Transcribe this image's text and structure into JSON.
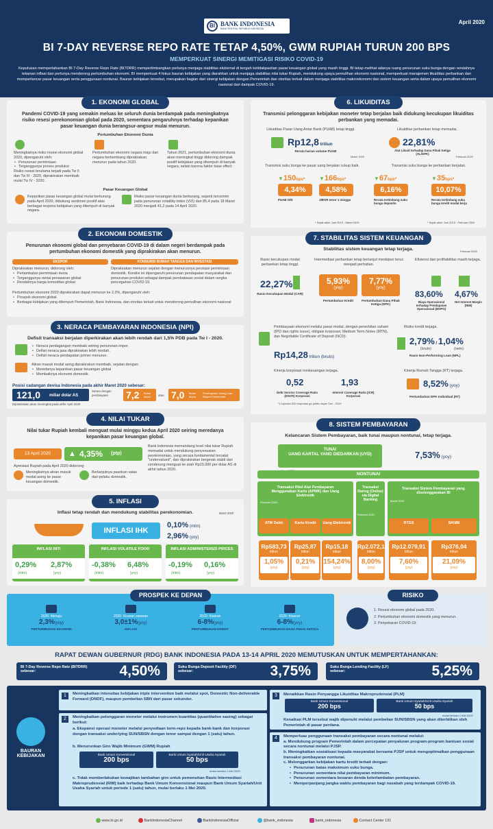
{
  "header": {
    "date": "April 2020",
    "logo": "BANK INDONESIA",
    "logo_sub": "BANK SENTRAL REPUBLIK INDONESIA",
    "title": "BI 7-DAY REVERSE REPO RATE TETAP 4,50%, GWM RUPIAH TURUN 200 BPS",
    "subtitle": "MEMPERKUAT SINERGI MEMITIGASI RISIKO COVID-19",
    "intro": "Keputusan mempertahankan BI 7-Day Reverse Repo Rate (BI7DRR) mempertimbangkan perlunya menjaga stabilitas eksternal di tengah ketidakpastian pasar keuangan global yang masih tinggi. BI tetap melihat adanya ruang penurunan suku bunga dengan rendahnya tekanan inflasi dan perlunya mendorong pertumbuhan ekonomi. BI memperkuat 4 fokus bauran kebijakan yang diarahkan untuk menjaga stabilitas nilai tukar Rupiah, mendukung upaya pemulihan ekonomi nasional, memperkuat manajemen likuiditas perbankan dan memperlancar pasar keuangan serta penggunaan nontunai. Bauran kebijakan tersebut, merupakan bagian dari sinergi kebijakan dengan Pemerintah dan otoritas terkait dalam menjaga stabilitas makroekonomi dan sistem keuangan serta dalam upaya pemulihan ekonomi nasional dari dampak COVID-19."
  },
  "s1": {
    "title": "1. EKONOMI GLOBAL",
    "lead": "Pandemi COVID-19 yang semakin meluas ke seluruh dunia berdampak pada meningkatnya risiko resesi perekonomian global pada 2020, sementara pengaruhnya terhadap kepanikan pasar keuangan dunia berangsur-angsur mulai menurun.",
    "sub1": "Pertumbuhan Ekonomi Dunia",
    "col1": "Meningkatnya risiko resesi ekonomi global 2020, dipengaruhi oleh:",
    "col1_items": [
      "Penurunan permintaan",
      "Terganggunya proses produksi"
    ],
    "col1_tail": "Risiko resesi terutama terjadi pada Tw II dan Tw III - 2020, diprakirakan membaik mulai Tw IV - 2020.",
    "col2": "Pertumbuhan ekonomi negara maju dan negara berkembang diprakirakan menurun pada tahun 2020.",
    "col3": "Tahun 2021, pertumbuhan ekonomi dunia akan meningkat tinggi didorong dampak positif kebijakan yang ditempuh di banyak negara, selain karena faktor base effect.",
    "sub2": "Pasar Keuangan Global",
    "m1": "Kepanikan pasar keuangan global mulai berkurang pada April 2020, didukung sentimen positif atas berbagai respons kebijakan yang ditempuh di banyak negara.",
    "m2": "Risiko pasar keuangan dunia berkurang, seperti tercermin pada penurunan volatility index (VIX) dari 85,4 pada 18 Maret 2020 menjadi 41,2 pada 14 April 2020."
  },
  "s2": {
    "title": "2. EKONOMI DOMESTIK",
    "lead": "Penurunan ekonomi global dan penyebaran COVID-19 di dalam negeri berdampak pada pertumbuhan ekonomi domestik yang diprakirakan akan menurun.",
    "tab1": "EKSPOR",
    "tab2": "KONSUMSI RUMAH TANGGA DAN INVESTASI",
    "l_head": "Diprakirakan menurun, didorong oleh:",
    "l_items": [
      "Perlambatan permintaan dunia",
      "Terganggunya rantai penawaran global",
      "Rendahnya harga komoditas global"
    ],
    "r_text": "Diprakirakan menurun sejalan dengan menurunnya persepsi permintaan domestik. Kondisi ini dipengaruhi penurunan pendapatan masyarakat dan penurunan produksi sebagai dampak pembatasan sosial dalam rangka pencegahan COVID-19.",
    "growth": "Pertumbuhan ekonomi 2020 diprakirakan dapat menurun ke 2,3%, dipengaruhi oleh:",
    "g_items": [
      "Prospek ekonomi global",
      "Berbagai kebijakan yang ditempuh Pemerintah, Bank Indonesia, dan otoritas terkait untuk mendorong pemulihan ekonomi nasional"
    ]
  },
  "s3": {
    "title": "3. NERACA PEMBAYARAN INDONESIA (NPI)",
    "lead": "Defisit transaksi berjalan diperkirakan akan lebih rendah dari 1,5% PDB pada Tw I - 2020.",
    "items": [
      "Neraca perdagangan membaik seiring penurunan impor.",
      "Defisit neraca jasa diprakirakan lebih rendah.",
      "Defisit neraca pendapatan primer menurun."
    ],
    "capital": "Aliran masuk modal asing diprakirakan membaik, sejalan dengan:",
    "capital_items": [
      "Meredanya kepanikan pasar keuangan global",
      "Membaiknya ekonomi domestik."
    ],
    "reserve_title": "Posisi cadangan devisa Indonesia pada akhir Maret 2020 sebesar:",
    "reserve_value": "121,0",
    "reserve_unit": "miliar dolar AS",
    "mid_label": "Setara dengan pembiayaan",
    "v1": "7,2",
    "v1_unit": "Bulan Impor",
    "atau": "atau",
    "v2": "7,0",
    "v2_unit": "Bulan Impor",
    "v2_tail": "Pembayaran Utang Luar Negeri Pemerintah",
    "note": "Diprakirakan akan meningkat pada akhir April 2020"
  },
  "s4": {
    "title": "4. NILAI TUKAR",
    "lead": "Nilai tukar Rupiah kembali menguat mulai minggu kedua April 2020 seiring meredanya kepanikan pasar keuangan global.",
    "date": "13 April 2020",
    "value": "4,35%",
    "value_unit": "(ptp)",
    "apresiasi": "Apresiasi Rupiah pada April 2020 didorong:",
    "a1": "Meningkatnya aliran masuk modal asing ke pasar keuangan domestik.",
    "a2": "Berlanjutnya pasokan valas dari pelaku domestik.",
    "right": "Bank Indonesia memandang level nilai tukar Rupiah memadai untuk mendukung penyesuaian perekonomian, yang secara fundamental tercatat \"undervalued\", dan diprakirakan bergerak stabil dan cenderung menguat ke arah Rp15.000 per dolar AS di akhir tahun 2020."
  },
  "s5": {
    "title": "5. INFLASI",
    "lead": "Inflasi tetap rendah dan mendukung stabilitas perekonomian.",
    "date": "Maret 2020",
    "ihk": "INFLASI IHK",
    "ihk_mtm": "0,10%",
    "ihk_mtm_u": "(mtm)",
    "ihk_yoy": "2,96%",
    "ihk_yoy_u": "(yoy)",
    "cards": [
      {
        "title": "INFLASI INTI",
        "v1": "0,29%",
        "u1": "(mtm)",
        "v2": "2,87%",
        "u2": "(yoy)"
      },
      {
        "title": "INFLASI VOLATILE FOOD",
        "v1": "-0,38%",
        "u1": "(mtm)",
        "v2": "6,48%",
        "u2": "(yoy)"
      },
      {
        "title": "INFLASI ADMINISTERED PRICES",
        "v1": "-0,19%",
        "u1": "(mtm)",
        "v2": "0,16%",
        "u2": "(yoy)"
      }
    ]
  },
  "s6": {
    "title": "6. LIKUIDITAS",
    "lead": "Transmisi pelonggaran kebijakan moneter tetap berjalan baik didukung kecukupan likuiditas perbankan yang memadai.",
    "puab_label": "Likuiditas Pasar Uang Antar Bank (PUAB) tetap tinggi.",
    "puab_value": "Rp12,8",
    "puab_unit": "triliun",
    "puab_sub": "Rerata harian volume PUAB",
    "puab_date": "Maret 2020",
    "al_label": "Likuiditas perbankan tetap memadai.",
    "al_value": "22,81%",
    "al_sub": "Alat Likuid terhadap Dana Pihak Ketiga (AL/DPK)",
    "al_date": "Februari 2020",
    "rates_label": "Transmisi suku bunga ke pasar uang berjalan cukup baik.",
    "bank_label": "Transmisi suku bunga ke perbankan berjalan.",
    "r1_bps": "150",
    "r1_val": "4,34%",
    "r1_lbl": "PUAB O/N",
    "r2_bps": "166",
    "r2_val": "4,58%",
    "r2_lbl": "JIBOR tenor 1 minggu",
    "r3_bps": "67",
    "r3_val": "6,16%",
    "r3_lbl": "Rerata tertimbang suku bunga deposito",
    "r4_bps": "35",
    "r4_val": "10,07%",
    "r4_lbl": "Rerata tertimbang suku bunga kredit modal kerja",
    "bps": "bps*",
    "note1": "* Sejak akhir Juni 2019 - Maret 2020",
    "note2": "* Sejak akhir Juni 2019 - Februari 2020"
  },
  "s7": {
    "title": "7. STABILITAS SISTEM KEUANGAN",
    "lead": "Stabilitas sistem keuangan tetap terjaga.",
    "date": "Februari 2020",
    "h1": "Rasio kecukupan modal perbankan tetap tinggi.",
    "h2": "Intermediasi perbankan tetap berlanjut meskipun terus menjadi perhatian.",
    "h3": "Efisiensi dan profitabilitas masih terjaga.",
    "car": "22,27%",
    "car_lbl": "Rasio Kecukupan Modal (CAR)",
    "kredit": "5,93%",
    "kredit_u": "(yoy)",
    "kredit_lbl": "Pertumbuhan Kredit",
    "dpk": "7,77%",
    "dpk_u": "(yoy)",
    "dpk_lbl": "Pertumbuhan Dana Pihak Ketiga (DPK)",
    "bopo": "83,60%",
    "bopo_lbl": "Biaya Operasional terhadap Pendapatan Operasional (BOPO)",
    "nim": "4,67%",
    "nim_lbl": "Net Interest Margin (NIM)",
    "pasar": "Pembiayaan ekonomi melalui pasar modal, dengan penerbitan saham (IPO dan rights issue), obligasi korporasi, Medium Term Notes (MTN), dan Negotiable Certificate of Deposit (NCD):",
    "pasar_value": "Rp14,28",
    "pasar_unit": "triliun (bruto)",
    "risk_label": "Risiko kredit terjaga.",
    "npl1": "2,79%",
    "npl1_u": "(bruto)",
    "npl2": "1,04%",
    "npl2_u": "(neto)",
    "npl_lbl": "Rasio Non-Performing Loan (NPL)",
    "korp_label": "Kinerja korporasi nonkeuangan terjaga.",
    "dscr": "0,52",
    "dscr_lbl": "Debt Service Coverage Ratio (DSCR) Korporasi",
    "icr": "1,93",
    "icr_lbl": "Interest Coverage Ratio (ICR) Korporasi",
    "korp_note": "*) Laporan 530 korporasi go public sejak Tw4 - 2019",
    "rt_label": "Kinerja Rumah Tangga (RT) terjaga.",
    "rt_value": "8,52%",
    "rt_u": "(yoy)",
    "rt_lbl": "Pertumbuhan DPK Individual (RT)"
  },
  "s8": {
    "title": "8. SISTEM PEMBAYARAN",
    "lead": "Kelancaran Sistem Pembayaran, baik tunai maupun nontunai, tetap terjaga.",
    "tunai": "TUNAI",
    "uyd": "UANG KARTAL YANG DIEDARKAN (UYD)",
    "uyd_value": "7,53%",
    "uyd_u": "(yoy)",
    "uyd_date": "Maret 2020",
    "nontunai": "NONTUNAI",
    "g1": "Transaksi Ritel Alat Pembayaran Menggunakan Kartu (APMK) dan Uang Elektronik",
    "g1_date": "Februari 2020",
    "g2": "Transaksi Daring (Online) via Digital Banking",
    "g2_date": "Februari 2020",
    "g3": "Transaksi Sistem Pembayaran yang diselenggarakan BI",
    "g3_date": "Maret 2020",
    "items": [
      {
        "label": "ATM Debit",
        "value": "Rp583,73",
        "unit": "triliun",
        "growth": "1,05%",
        "gu": "(yoy)"
      },
      {
        "label": "Kartu Kredit",
        "value": "Rp25,87",
        "unit": "triliun",
        "growth": "0,21%",
        "gu": "(yoy)"
      },
      {
        "label": "Uang Elektronik",
        "value": "Rp15,18",
        "unit": "triliun",
        "growth": "154,24%",
        "gu": "(yoy)"
      },
      {
        "label": "",
        "value": "Rp2.072,12",
        "unit": "triliun",
        "growth": "8,00%",
        "gu": "(yoy)"
      },
      {
        "label": "RTGS",
        "value": "Rp12.079,91",
        "unit": "triliun",
        "growth": "7,60%",
        "gu": "(yoy)"
      },
      {
        "label": "SKNBI",
        "value": "Rp376,04",
        "unit": "triliun",
        "growth": "21,09%",
        "gu": "(yoy)"
      }
    ]
  },
  "prospek": {
    "title": "PROSPEK KE DEPAN",
    "items": [
      {
        "top": "2020: Menuju",
        "value": "2,3%",
        "unit": "(yoy)",
        "label": "PERTUMBUHAN EKONOMI"
      },
      {
        "top": "2020: Kisaran sasaran",
        "value": "3,0±1%",
        "unit": "(yoy)",
        "label": "INFLASI"
      },
      {
        "top": "2020: Kisaran",
        "value": "6-8%",
        "unit": "(yoy)",
        "label": "PERTUMBUHAN KREDIT"
      },
      {
        "top": "2020: Kisaran",
        "value": "6-8%",
        "unit": "(yoy)",
        "label": "PERTUMBUHAN DANA PIHAK KETIGA"
      }
    ]
  },
  "risiko": {
    "title": "RISIKO",
    "items": [
      "1. Resesi ekonomi global pada 2020.",
      "2. Pertumbuhan ekonomi domestik yang menurun.",
      "3. Penyebaran COVID-19."
    ]
  },
  "rdg": {
    "title": "RAPAT DEWAN GUBERNUR (RDG) BANK INDONESIA PADA 13-14 APRIL 2020 MEMUTUSKAN UNTUK MEMPERTAHANKAN:",
    "r1_lbl": "BI 7-Day Reverse Repo Rate (BI7DRR) sebesar:",
    "r1": "4,50%",
    "r2_lbl": "Suku Bunga Deposit Facility (DF) sebesar:",
    "r2": "3,75%",
    "r3_lbl": "Suku Bunga Lending Facility (LF) sebesar:",
    "r3": "5,25%"
  },
  "bauran": {
    "title": "BAURAN KEBIJAKAN",
    "p1": "Meningkatkan intensitas kebijakan triple intervention baik melalui spot, Domestic Non-deliverable Forward (DNDF), maupun pembelian SBN dari pasar sekunder.",
    "p2": "Meningkatkan pelonggaran moneter melalui instrumen kuantitas (quantitative easing) sebagai berikut:",
    "p2a": "a. Ekspansi operasi moneter melalui penyediaan term-repo kepada bank-bank dan korporasi dengan transaksi underlying SUN/SBSN dengan tenor sampai dengan 1 (satu) tahun.",
    "p2b": "b. Menurunkan Giro Wajib Minimum (GWM) Rupiah",
    "gwm1_lbl": "Bank Umum Konvensional",
    "gwm1": "200 bps",
    "gwm2_lbl": "Bank Umum Syariah/Unit Usaha Syariah",
    "gwm2": "50 bps",
    "gwm_note": "mulai berlaku 1 Mei 2020",
    "p2c": "c. Tidak memberlakukan kewajiban tambahan giro untuk pemenuhan Rasio Intermediasi Makroprudensial (RIM) baik terhadap Bank Umum Konvensional maupun Bank Umum Syariah/Unit Usaha Syariah untuk periode 1 (satu) tahun, mulai berlaku 1 Mei 2020.",
    "p3": "Menaikkan Rasio Penyangga Likuiditas Makroprudensial (PLM)",
    "plm1_lbl": "Bank Umum Konvensional",
    "plm1": "200 bps",
    "plm2_lbl": "Bank Umum Syariah/Unit Usaha Syariah",
    "plm2": "50 bps",
    "plm_note": "mulai berlaku 1 Mei 2020",
    "p3_tail": "Kenaikan PLM tersebut wajib dipenuhi melalui pembelian SUN/SBSN yang akan diterbitkan oleh Pemerintah di pasar perdana.",
    "p4": "Memperluas penggunaan transaksi pembayaran secara nontunai melalui:",
    "p4_items": [
      "a. Mendukung program Pemerintah dalam percepatan penyaluran program-program bantuan sosial secara nontunai melalui PJSP.",
      "b. Meningkatkan sosialisasi kepada masyarakat bersama PJSP untuk mengoptimalkan penggunaan transaksi pembayaran nontunai.",
      "c. Melonggarkan kebijakan kartu kredit terkait dengan:"
    ],
    "p4_sub": [
      "Penurunan batas maksimum suku bunga.",
      "Penurunan sementara nilai pembayaran minimum.",
      "Penurunan sementara besaran denda keterlambatan pembayaran.",
      "Memperpanjang jangka waktu pembayaran bagi nasabah yang terdampak COVID-19."
    ]
  },
  "footer": [
    "www.bi.go.id",
    "BankIndonesiaChannel",
    "BankIndonesiaOfficial",
    "@bank_indonesia",
    "bank_indonesia",
    "Contact Center 131"
  ],
  "colors": {
    "navy": "#1d3f6e",
    "orange": "#e8862b",
    "green": "#6ab74e",
    "blue": "#39b1e3"
  }
}
